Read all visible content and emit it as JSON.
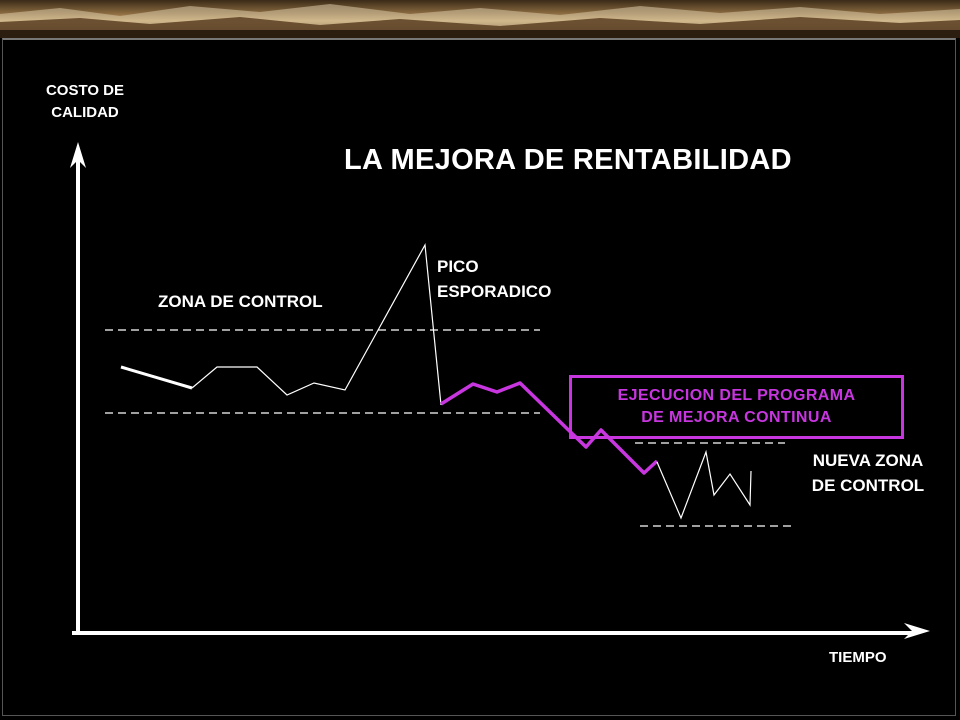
{
  "y_axis_label": [
    "COSTO DE",
    "CALIDAD"
  ],
  "x_axis_label": "TIEMPO",
  "title": "LA MEJORA DE RENTABILIDAD",
  "zona_control_label": "ZONA DE CONTROL",
  "pico_label": [
    "PICO",
    "ESPORADICO"
  ],
  "program_label": [
    "EJECUCION DEL PROGRAMA",
    "DE MEJORA CONTINUA"
  ],
  "nueva_zona_label": [
    "NUEVA ZONA",
    "DE CONTROL"
  ],
  "colors": {
    "background": "#000000",
    "text": "#ffffff",
    "accent": "#c836e0",
    "axis": "#ffffff"
  }
}
